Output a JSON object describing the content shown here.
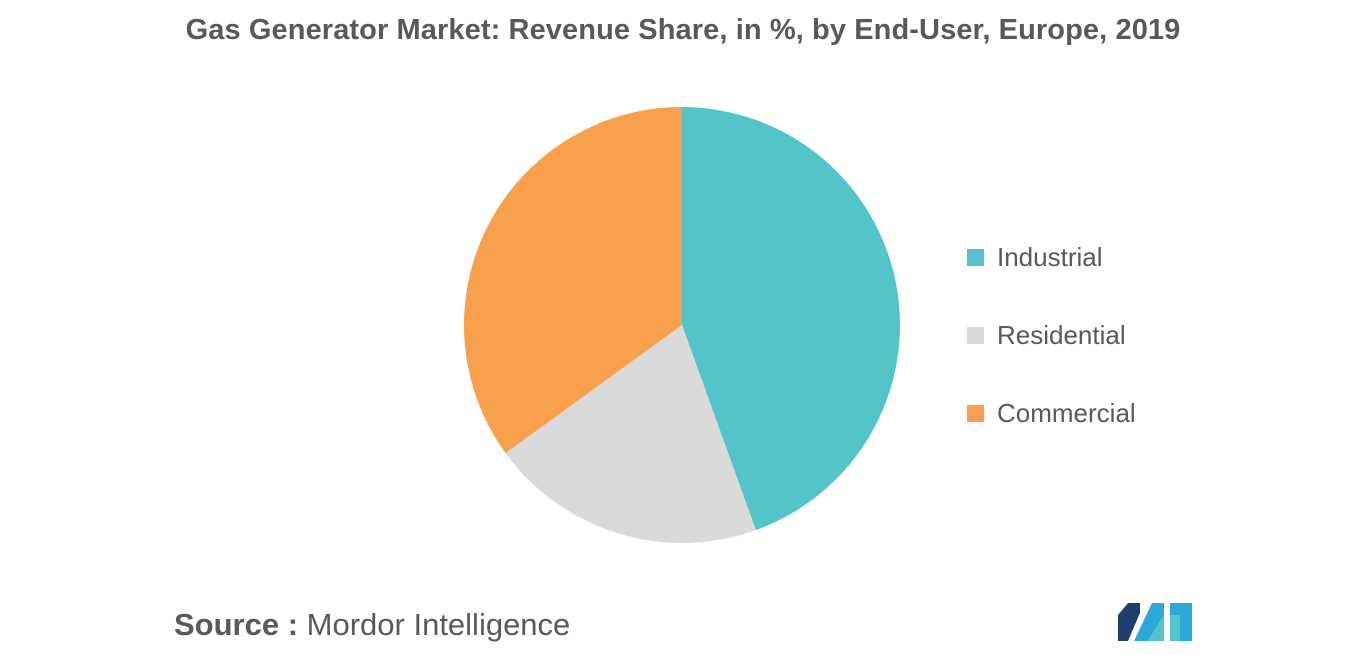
{
  "chart_data": {
    "type": "pie",
    "title": "Gas Generator Market: Revenue Share, in %, by End-User, Europe, 2019",
    "slices": [
      {
        "label": "Industrial",
        "value": 44.5,
        "color": "#52C4CA"
      },
      {
        "label": "Residential",
        "value": 20.5,
        "color": "#DADADA"
      },
      {
        "label": "Commercial",
        "value": 35,
        "color": "#F9A04C"
      }
    ],
    "start_angle_deg": 0,
    "direction": "clockwise",
    "legend_position": "right"
  },
  "source": {
    "label": "Source :",
    "value": "Mordor Intelligence"
  },
  "logo": {
    "colors": [
      "#1F3F6E",
      "#2BA8D8",
      "#52C4CA"
    ]
  }
}
